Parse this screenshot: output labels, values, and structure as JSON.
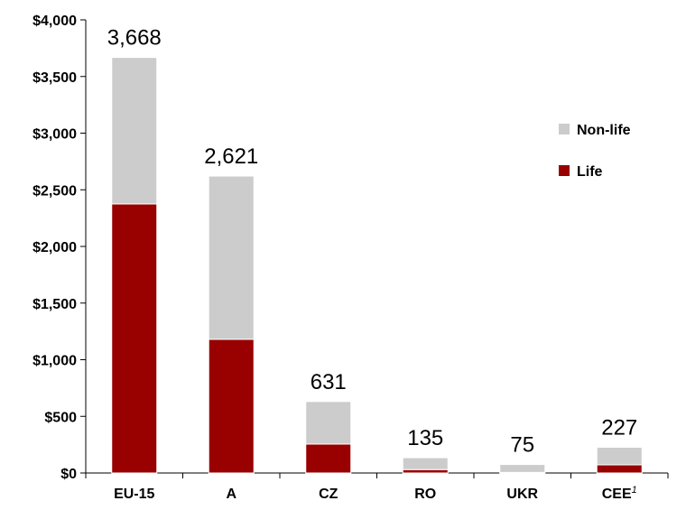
{
  "chart_data": {
    "type": "bar",
    "stacked": true,
    "categories": [
      "EU-15",
      "A",
      "CZ",
      "RO",
      "UKR",
      "CEE"
    ],
    "category_superscripts": [
      "",
      "",
      "",
      "",
      "",
      "1"
    ],
    "series": [
      {
        "name": "Life",
        "color": "#990000",
        "values": [
          2375,
          1180,
          255,
          30,
          5,
          72
        ]
      },
      {
        "name": "Non-life",
        "color": "#cccccc",
        "values": [
          1293,
          1441,
          376,
          105,
          70,
          155
        ]
      }
    ],
    "totals": [
      3668,
      2621,
      631,
      135,
      75,
      227
    ],
    "total_labels": [
      "3,668",
      "2,621",
      "631",
      "135",
      "75",
      "227"
    ],
    "ylim": [
      0,
      4000
    ],
    "y_ticks": [
      0,
      500,
      1000,
      1500,
      2000,
      2500,
      3000,
      3500,
      4000
    ],
    "y_tick_labels": [
      "$0",
      "$500",
      "$1,000",
      "$1,500",
      "$2,000",
      "$2,500",
      "$3,000",
      "$3,500",
      "$4,000"
    ],
    "legend": {
      "position": "right",
      "entries": [
        {
          "label": "Non-life",
          "color": "#cccccc"
        },
        {
          "label": "Life",
          "color": "#990000"
        }
      ]
    },
    "grid": false
  }
}
